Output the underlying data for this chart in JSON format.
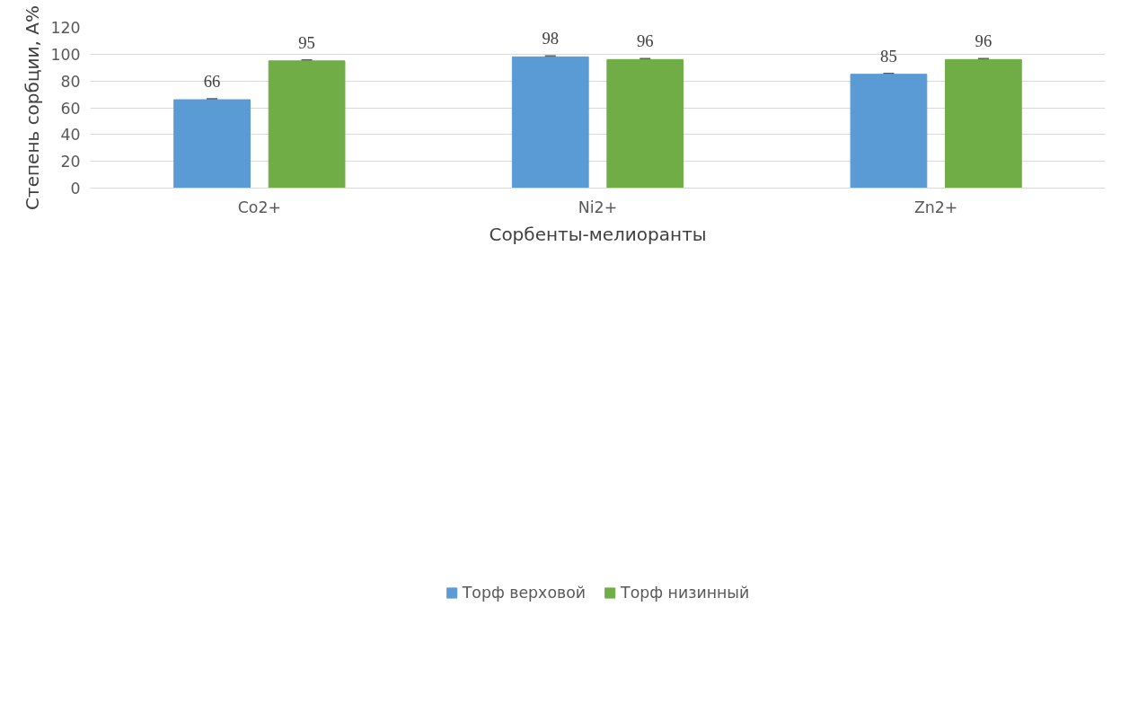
{
  "chart_data": {
    "type": "bar",
    "xlabel": "Сорбенты-мелиоранты",
    "ylabel": "Степень сорбции, А%",
    "categories": [
      "Co2+",
      "Ni2+",
      "Zn2+"
    ],
    "series": [
      {
        "name": "Торф верховой",
        "color": "#5b9bd5",
        "values": [
          66,
          98,
          85
        ],
        "errors": [
          0.5,
          0.5,
          0.5
        ]
      },
      {
        "name": "Торф низинный",
        "color": "#70ad47",
        "values": [
          95,
          96,
          96
        ],
        "errors": [
          0.5,
          0.5,
          0.5
        ]
      }
    ],
    "ylim": [
      0,
      120
    ],
    "yticks": [
      0,
      20,
      40,
      60,
      80,
      100,
      120
    ],
    "grid": "y",
    "legend": "bottom",
    "data_labels": true
  }
}
